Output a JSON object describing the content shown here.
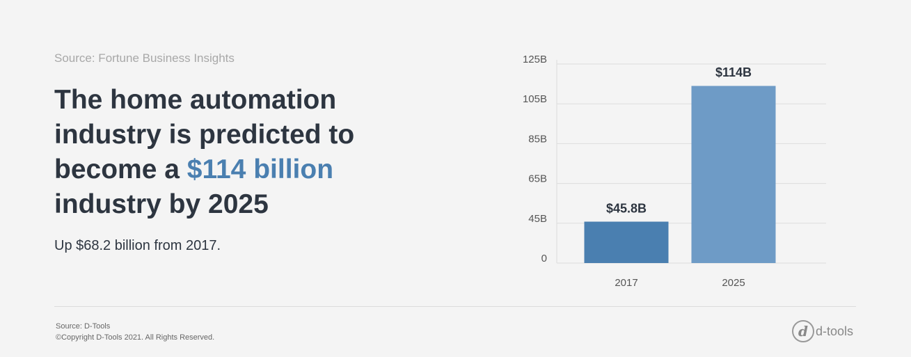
{
  "source": "Source: Fortune Business Insights",
  "headline": {
    "lines": [
      "The home automation",
      "industry is predicted to",
      "become a "
    ],
    "highlight": "$114 billion",
    "last_line": "industry by 2025"
  },
  "subhead": "Up $68.2 billion from 2017.",
  "chart_data": {
    "type": "bar",
    "categories": [
      "2017",
      "2025"
    ],
    "values": [
      45.8,
      114
    ],
    "value_labels": [
      "$45.8B",
      "$114B"
    ],
    "colors": [
      "#4a7fb0",
      "#6e9bc6"
    ],
    "ylim": [
      0,
      125
    ],
    "yticks": [
      0,
      {
        "value": 45,
        "label": "45B"
      },
      {
        "value": 65,
        "label": "65B"
      },
      {
        "value": 85,
        "label": "85B"
      },
      {
        "value": 105,
        "label": "105B"
      },
      {
        "value": 125,
        "label": "125B"
      }
    ],
    "grid": true
  },
  "footer": {
    "source": "Source: D-Tools",
    "copyright": "©Copyright D-Tools 2021. All Rights Reserved.",
    "logo": "d-tools"
  }
}
